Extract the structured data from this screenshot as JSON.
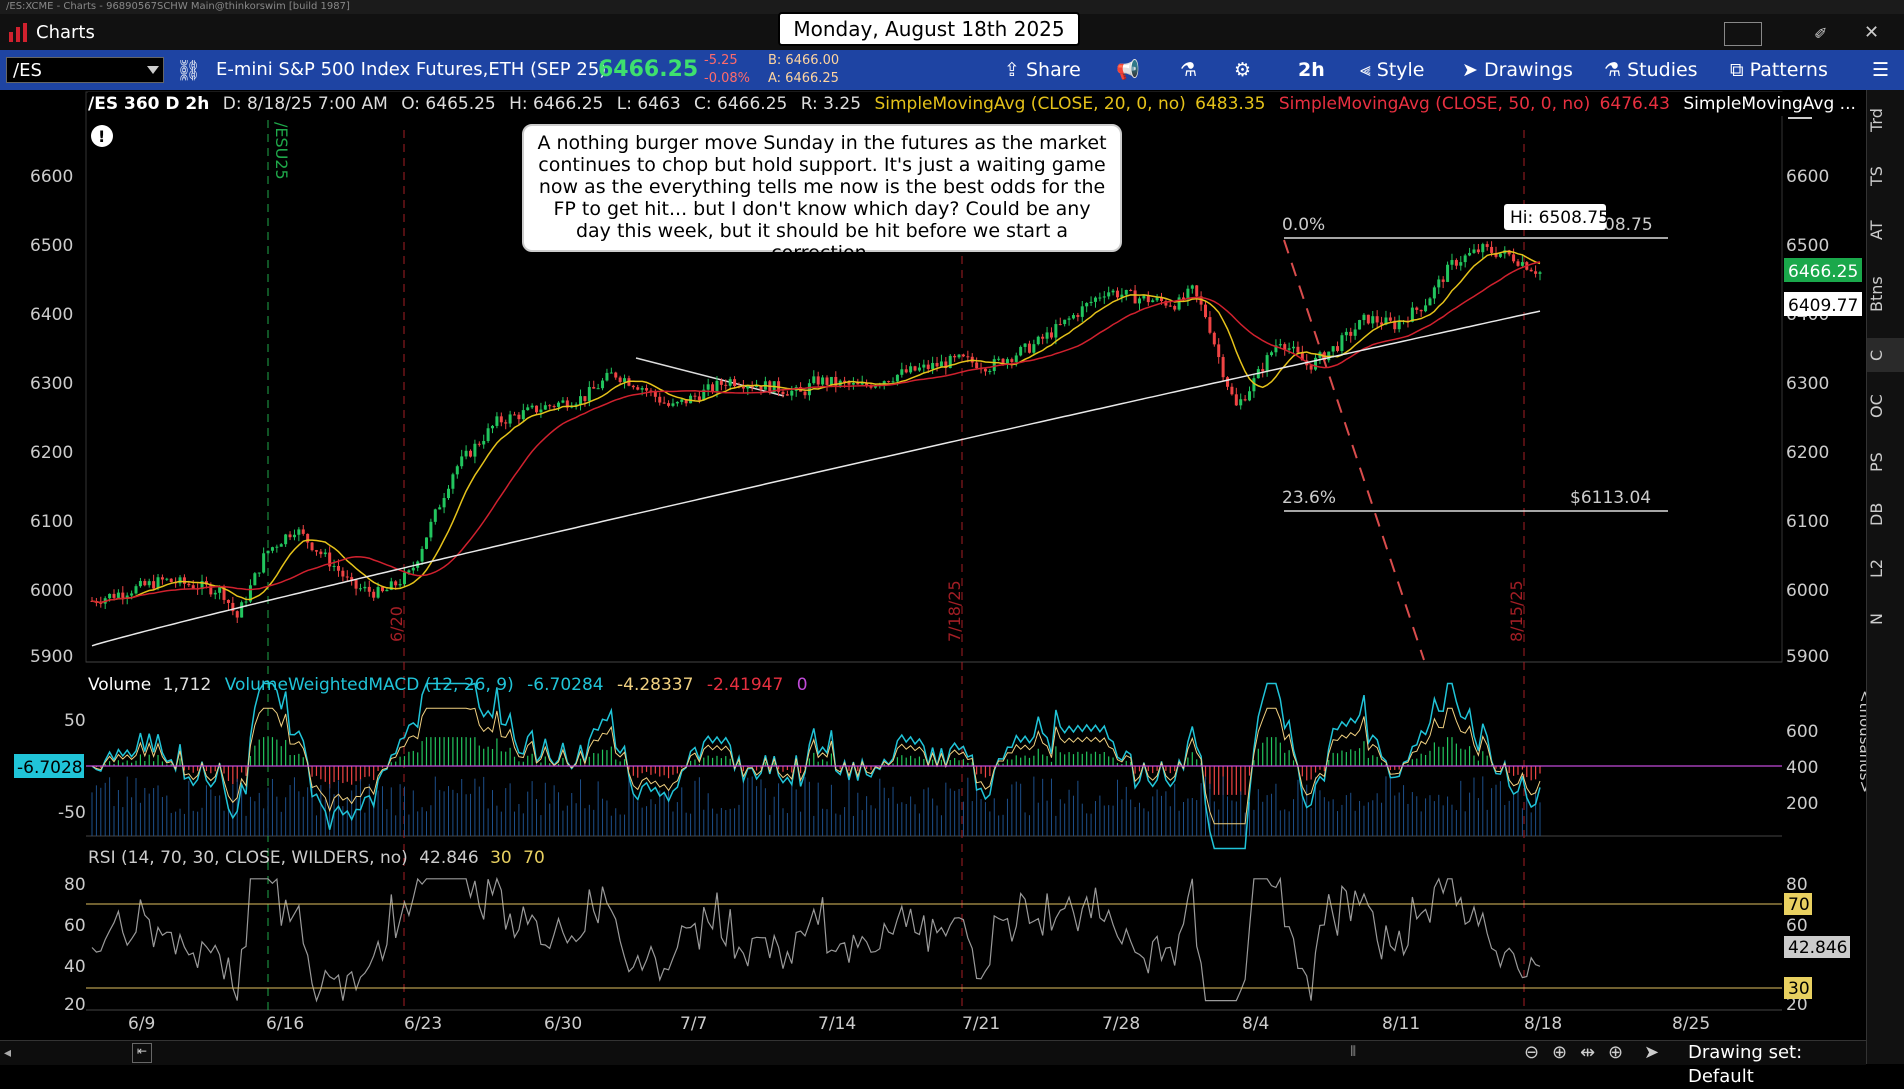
{
  "window": {
    "title": "/ES:XCME - Charts - 96890567SCHW Main@thinkorswim [build 1987]"
  },
  "menu": {
    "charts_label": "Charts"
  },
  "date_banner": "Monday, August 18th 2025",
  "toolbar": {
    "symbol": "/ES",
    "description": "E-mini S&P 500 Index Futures,ETH (SEP 25)",
    "last": "6466.25",
    "change": "-5.25",
    "change_pct": "-0.08%",
    "bid": "B: 6466.00",
    "ask": "A: 6466.25",
    "share": "Share",
    "timeframe": "2h",
    "style": "Style",
    "drawings": "Drawings",
    "studies": "Studies",
    "patterns": "Patterns"
  },
  "info": {
    "symbol": "/ES 360 D 2h",
    "date": "D: 8/18/25 7:00 AM",
    "open": "O: 6465.25",
    "high": "H: 6466.25",
    "low": "L: 6463",
    "close": "C: 6466.25",
    "range": "R: 3.25",
    "sma20": "SimpleMovingAvg (CLOSE, 20, 0, no)",
    "sma20_val": "6483.35",
    "sma50": "SimpleMovingAvg (CLOSE, 50, 0, no)",
    "sma50_val": "6476.43",
    "sma_more": "SimpleMovingAvg ..."
  },
  "note": "A nothing burger move Sunday in the futures as the market continues to chop but hold support.  It's just a waiting game now as the everything tells me now is the best odds for the FP to get hit... but I don't know which day?  Could be any day this week, but it should be hit before we start a correction.",
  "price_axis": [
    "6600",
    "6500",
    "6400",
    "6300",
    "6200",
    "6100",
    "6000",
    "5900"
  ],
  "tags": {
    "last": "6466.25",
    "sma200": "6409.77",
    "hi": "Hi: 6508.75",
    "hi_partial": "08.75"
  },
  "fib": {
    "zero": "0.0%",
    "p236": "23.6%",
    "p236_val": "$6113.04"
  },
  "vlines": {
    "esu": "/ESU25",
    "d620": "6/20",
    "d718": "7/18/25",
    "d815": "8/15/25"
  },
  "volume": {
    "label": "Volume",
    "value": "1,712",
    "macd": "VolumeWeightedMACD (12, 26, 9)",
    "v1": "-6.70284",
    "v2": "-4.28337",
    "v3": "-2.41947",
    "v4": "0",
    "left_tag": "-6.7028",
    "left_axis": [
      "50",
      "-50"
    ],
    "right_axis": [
      "600",
      "400",
      "200"
    ],
    "units": "<thousands>"
  },
  "rsi": {
    "label": "RSI (14, 70, 30, CLOSE, WILDERS, no)",
    "value": "42.846",
    "b30": "30",
    "b70": "70",
    "axis": [
      "80",
      "60",
      "40",
      "20"
    ],
    "tag70": "70",
    "tag30": "30",
    "tagv": "42.846"
  },
  "x_axis": [
    "6/9",
    "6/16",
    "6/23",
    "6/30",
    "7/7",
    "7/14",
    "7/21",
    "7/28",
    "8/4",
    "8/11",
    "8/18",
    "8/25"
  ],
  "right_tabs": [
    "Trd",
    "TS",
    "AT",
    "Btns",
    "C",
    "OC",
    "PS",
    "DB",
    "L2",
    "N"
  ],
  "status": {
    "drawing_set": "Drawing set: Default"
  },
  "colors": {
    "toolbar": "#1e44a3",
    "up": "#22c55e",
    "down": "#ef4444",
    "sma20": "#e5c21a",
    "sma50": "#d0212e",
    "sma200": "#e8e8e8",
    "macd": "#20c4d8"
  }
}
